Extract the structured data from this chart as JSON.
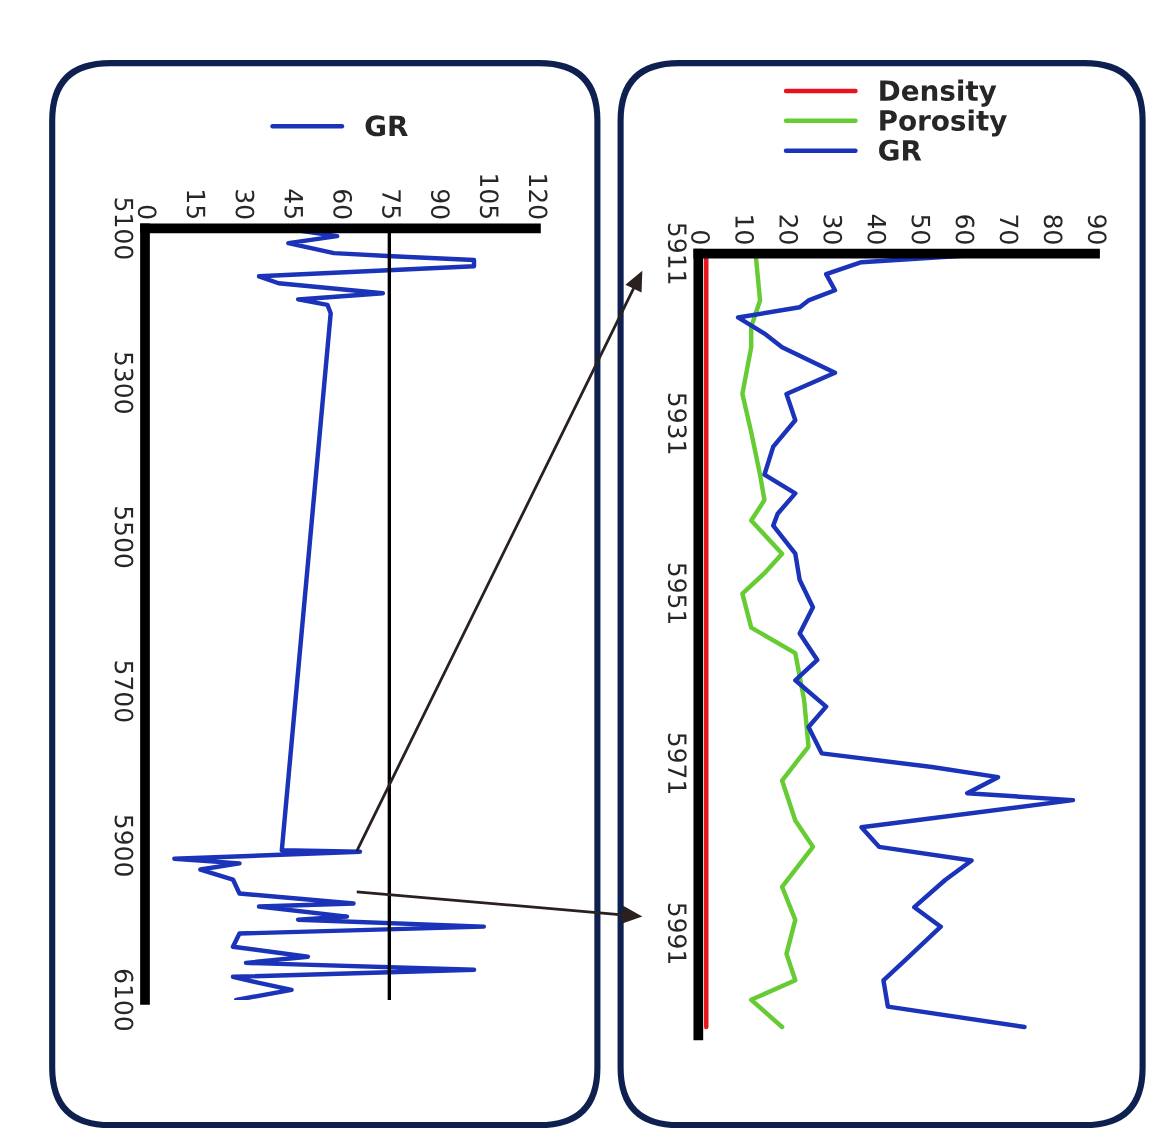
{
  "chart_data": [
    {
      "type": "line",
      "orientation": "horizontal",
      "xlim": [
        0,
        120
      ],
      "xticks": [
        0,
        15,
        30,
        45,
        60,
        75,
        90,
        105,
        120
      ],
      "ylim": [
        6100,
        5100
      ],
      "yticks": [
        5100,
        5300,
        5500,
        5700,
        5900,
        6100
      ],
      "grid": false,
      "legend": "top",
      "marker": "none",
      "line_style": "solid",
      "ref_lines": [
        {
          "axis": "x",
          "value": 75,
          "color": "#000000"
        }
      ],
      "series": [
        {
          "name": "GR",
          "color": "#1a33b8",
          "x": [
            5100,
            5110,
            5119,
            5132,
            5136,
            5141,
            5149,
            5162,
            5171,
            5184,
            5192,
            5199,
            5210,
            5906,
            5908,
            5917,
            5923,
            5931,
            5944,
            5962,
            5975,
            5979,
            5992,
            5996,
            6005,
            6014,
            6031,
            6044,
            6052,
            6061,
            6070,
            6078,
            6087,
            6100
          ],
          "values": [
            43,
            59,
            44,
            58,
            76,
            101,
            101,
            35,
            41,
            73,
            47,
            56,
            57,
            42,
            66,
            9,
            29,
            17,
            27,
            29,
            64,
            35,
            62,
            47,
            104,
            29,
            27,
            50,
            31,
            101,
            27,
            35,
            45,
            28
          ]
        }
      ]
    },
    {
      "type": "line",
      "orientation": "horizontal",
      "xlim": [
        0,
        90
      ],
      "xticks": [
        0,
        10,
        20,
        30,
        40,
        50,
        60,
        70,
        80,
        90
      ],
      "ylim": [
        6003,
        5911
      ],
      "yticks": [
        5911,
        5931,
        5951,
        5971,
        5991
      ],
      "grid": false,
      "legend": "top",
      "marker": "none",
      "line_style": "solid",
      "series": [
        {
          "name": "Density",
          "color": "#e8141c",
          "x": [
            5911,
            6002
          ],
          "values": [
            1.8,
            1.8
          ]
        },
        {
          "name": "Porosity",
          "color": "#66cc33",
          "x": [
            5911,
            5916.5,
            5919.6,
            5922,
            5927.5,
            5932,
            5937,
            5940,
            5942.4,
            5946.3,
            5948.6,
            5951,
            5955,
            5958,
            5963.5,
            5969,
            5973,
            5977.7,
            5980.8,
            5985.5,
            5989.4,
            5993.4,
            5996.5,
            5998.8,
            6002
          ],
          "values": [
            13,
            14,
            12,
            12,
            10,
            12,
            14,
            15,
            12,
            19,
            15,
            10,
            12,
            22,
            24,
            25,
            19,
            22,
            26,
            19,
            22,
            20,
            22,
            12,
            19
          ]
        },
        {
          "name": "GR",
          "color": "#1a33b8",
          "x": [
            5911,
            5912,
            5913.4,
            5915.3,
            5916.5,
            5917.3,
            5918.5,
            5920.4,
            5922,
            5925,
            5927.5,
            5930.6,
            5933.7,
            5937,
            5939.2,
            5941.6,
            5943,
            5946.3,
            5949.4,
            5952.6,
            5955.7,
            5958.8,
            5961.2,
            5964.3,
            5966.7,
            5969.8,
            5971.4,
            5972.6,
            5974.5,
            5975.3,
            5978.5,
            5980.8,
            5982.4,
            5984.7,
            5987.9,
            5990.2,
            5994.1,
            5996.5,
            5999.6,
            6002
          ],
          "values": [
            67,
            37,
            29,
            31,
            25,
            23,
            9,
            15,
            19,
            31,
            20,
            22,
            17,
            15,
            22,
            18,
            17,
            22,
            23,
            26,
            23,
            27,
            22,
            29,
            25,
            28,
            53,
            68,
            61,
            85,
            37,
            41,
            62,
            56,
            49,
            55,
            47,
            42,
            43,
            74
          ]
        }
      ]
    }
  ]
}
